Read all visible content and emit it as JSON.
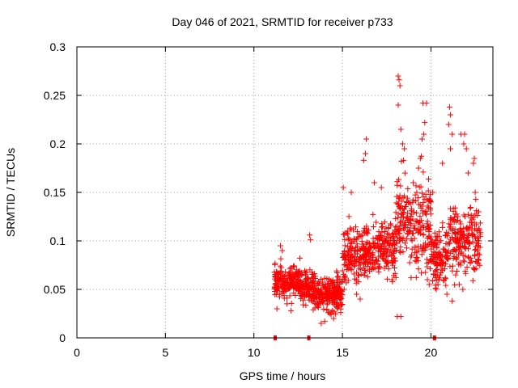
{
  "chart_data": {
    "type": "scatter",
    "title": "Day 046 of 2021, SRMTID for receiver p733",
    "xlabel": "GPS time / hours",
    "ylabel": "SRMTID / TECUs",
    "xlim": [
      0,
      23.5
    ],
    "ylim": [
      0,
      0.3
    ],
    "x_ticks": [
      0,
      5,
      10,
      15,
      20
    ],
    "x_tick_labels": [
      "0",
      "5",
      "10",
      "15",
      "20"
    ],
    "y_ticks": [
      0,
      0.05,
      0.1,
      0.15,
      0.2,
      0.25,
      0.3
    ],
    "y_tick_labels": [
      "0",
      "0.05",
      "0.1",
      "0.15",
      "0.2",
      "0.25",
      "0.3"
    ],
    "grid": true,
    "marker": "plus",
    "series_color": "#ff0000",
    "zero_markers_x": [
      11.2,
      13.1,
      20.2
    ],
    "segments": [
      {
        "x_start": 11.15,
        "x_end": 12.6,
        "count": 200,
        "base": 0.058,
        "spread": 0.012
      },
      {
        "x_start": 12.6,
        "x_end": 13.4,
        "count": 110,
        "base": 0.052,
        "spread": 0.011
      },
      {
        "x_start": 13.4,
        "x_end": 15.0,
        "count": 240,
        "base": 0.045,
        "spread": 0.012
      },
      {
        "x_start": 15.0,
        "x_end": 16.5,
        "count": 190,
        "base": 0.088,
        "spread": 0.02
      },
      {
        "x_start": 16.5,
        "x_end": 18.0,
        "count": 170,
        "base": 0.092,
        "spread": 0.02
      },
      {
        "x_start": 18.0,
        "x_end": 20.0,
        "count": 230,
        "base": 0.12,
        "spread": 0.035
      },
      {
        "x_start": 20.0,
        "x_end": 21.0,
        "count": 120,
        "base": 0.085,
        "spread": 0.02
      },
      {
        "x_start": 21.0,
        "x_end": 22.8,
        "count": 200,
        "base": 0.1,
        "spread": 0.025
      }
    ],
    "notable_points": [
      [
        11.5,
        0.095
      ],
      [
        11.6,
        0.09
      ],
      [
        13.15,
        0.106
      ],
      [
        13.2,
        0.101
      ],
      [
        14.5,
        0.02
      ],
      [
        14.3,
        0.025
      ],
      [
        15.05,
        0.155
      ],
      [
        15.5,
        0.15
      ],
      [
        16.2,
        0.183
      ],
      [
        16.35,
        0.205
      ],
      [
        16.3,
        0.19
      ],
      [
        16.8,
        0.16
      ],
      [
        17.2,
        0.155
      ],
      [
        18.15,
        0.27
      ],
      [
        18.2,
        0.266
      ],
      [
        18.25,
        0.26
      ],
      [
        18.15,
        0.24
      ],
      [
        18.1,
        0.022
      ],
      [
        18.3,
        0.022
      ],
      [
        18.3,
        0.215
      ],
      [
        18.4,
        0.2
      ],
      [
        18.5,
        0.195
      ],
      [
        18.45,
        0.183
      ],
      [
        19.0,
        0.16
      ],
      [
        19.2,
        0.15
      ],
      [
        19.3,
        0.175
      ],
      [
        19.5,
        0.205
      ],
      [
        19.6,
        0.21
      ],
      [
        19.55,
        0.242
      ],
      [
        19.75,
        0.242
      ],
      [
        19.65,
        0.222
      ],
      [
        19.4,
        0.185
      ],
      [
        20.1,
        0.15
      ],
      [
        20.0,
        0.14
      ],
      [
        20.65,
        0.18
      ],
      [
        21.05,
        0.238
      ],
      [
        21.1,
        0.23
      ],
      [
        21.0,
        0.22
      ],
      [
        21.1,
        0.195
      ],
      [
        21.2,
        0.21
      ],
      [
        21.7,
        0.21
      ],
      [
        21.9,
        0.21
      ],
      [
        21.85,
        0.2
      ],
      [
        22.0,
        0.195
      ],
      [
        22.1,
        0.17
      ],
      [
        22.4,
        0.18
      ],
      [
        22.45,
        0.185
      ],
      [
        22.5,
        0.15
      ],
      [
        22.7,
        0.13
      ],
      [
        22.7,
        0.1
      ],
      [
        22.7,
        0.08
      ],
      [
        20.9,
        0.045
      ],
      [
        21.2,
        0.038
      ],
      [
        19.8,
        0.06
      ],
      [
        19.9,
        0.055
      ],
      [
        21.8,
        0.05
      ],
      [
        21.6,
        0.055
      ],
      [
        20.4,
        0.055
      ],
      [
        16.0,
        0.04
      ],
      [
        15.8,
        0.045
      ],
      [
        17.8,
        0.06
      ],
      [
        15.1,
        0.05
      ],
      [
        11.3,
        0.03
      ],
      [
        12.1,
        0.028
      ],
      [
        13.8,
        0.015
      ],
      [
        14.0,
        0.017
      ]
    ]
  }
}
